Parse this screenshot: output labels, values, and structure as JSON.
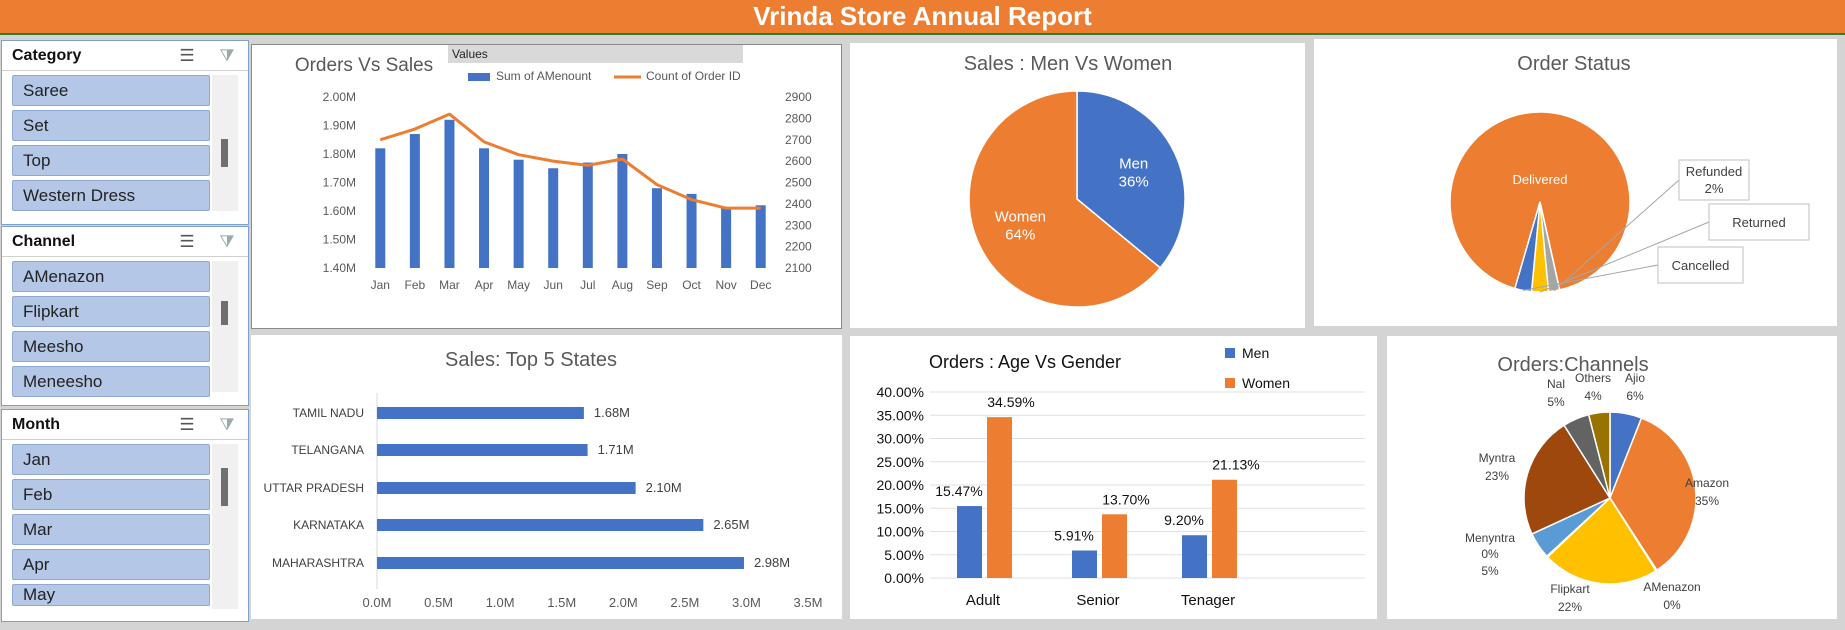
{
  "header": {
    "title": "Vrinda Store Annual Report"
  },
  "slicers": [
    {
      "title": "Category",
      "items": [
        "Saree",
        "Set",
        "Top",
        "Western Dress"
      ]
    },
    {
      "title": "Channel",
      "items": [
        "AMenazon",
        "Flipkart",
        "Meesho",
        "Meneesho"
      ]
    },
    {
      "title": "Month",
      "items": [
        "Jan",
        "Feb",
        "Mar",
        "Apr",
        "May"
      ]
    }
  ],
  "chart_data": [
    {
      "type": "bar",
      "title": "Orders Vs Sales",
      "legend_header": "Values",
      "legend_placement": "top",
      "categories": [
        "Jan",
        "Feb",
        "Mar",
        "Apr",
        "May",
        "Jun",
        "Jul",
        "Aug",
        "Sep",
        "Oct",
        "Nov",
        "Dec"
      ],
      "series": [
        {
          "name": "Sum of AMenount",
          "type": "bar",
          "axis": "left",
          "color": "#4472c4",
          "values": [
            1.82,
            1.87,
            1.92,
            1.82,
            1.78,
            1.75,
            1.77,
            1.8,
            1.68,
            1.66,
            1.61,
            1.62
          ]
        },
        {
          "name": "Count of Order ID",
          "type": "line",
          "axis": "right",
          "color": "#ed7d31",
          "values": [
            2700,
            2750,
            2820,
            2690,
            2630,
            2600,
            2580,
            2610,
            2490,
            2420,
            2380,
            2380
          ]
        }
      ],
      "y_left": {
        "ylim": [
          1.4,
          2.0
        ],
        "ticks": [
          "1.40M",
          "1.50M",
          "1.60M",
          "1.70M",
          "1.80M",
          "1.90M",
          "2.00M"
        ]
      },
      "y_right": {
        "ylim": [
          2100,
          2900
        ],
        "ticks": [
          "2100",
          "2200",
          "2300",
          "2400",
          "2500",
          "2600",
          "2700",
          "2800",
          "2900"
        ]
      },
      "grid": false
    },
    {
      "type": "pie",
      "title": "Sales : Men Vs Women",
      "slices": [
        {
          "label": "Men",
          "value": 36,
          "pct_label": "36%",
          "color": "#4472c4"
        },
        {
          "label": "Women",
          "value": 64,
          "pct_label": "64%",
          "color": "#ed7d31"
        }
      ]
    },
    {
      "type": "pie",
      "title": "Order Status",
      "slices": [
        {
          "label": "Delivered",
          "value": 92,
          "pct_label": "",
          "color": "#ed7d31"
        },
        {
          "label": "Refunded",
          "value": 2,
          "pct_label": "2%",
          "color": "#a5a5a5"
        },
        {
          "label": "Returned",
          "value": 3,
          "pct_label": "",
          "color": "#ffc000"
        },
        {
          "label": "Cancelled",
          "value": 3,
          "pct_label": "",
          "color": "#4472c4"
        }
      ]
    },
    {
      "type": "bar",
      "orientation": "horizontal",
      "title": "Sales: Top 5 States",
      "categories": [
        "TAMIL NADU",
        "TELANGANA",
        "UTTAR PRADESH",
        "KARNATAKA",
        "MAHARASHTRA"
      ],
      "values": [
        1.68,
        1.71,
        2.1,
        2.65,
        2.98
      ],
      "value_labels": [
        "1.68M",
        "1.71M",
        "2.10M",
        "2.65M",
        "2.98M"
      ],
      "xlim": [
        0,
        3.5
      ],
      "ticks": [
        "0.0M",
        "0.5M",
        "1.0M",
        "1.5M",
        "2.0M",
        "2.5M",
        "3.0M",
        "3.5M"
      ],
      "color": "#4472c4"
    },
    {
      "type": "bar",
      "title": "Orders : Age Vs Gender",
      "legend_placement": "top-right",
      "categories": [
        "Adult",
        "Senior",
        "Tenager"
      ],
      "series": [
        {
          "name": "Men",
          "color": "#4472c4",
          "values": [
            15.47,
            5.91,
            9.2
          ],
          "labels": [
            "15.47%",
            "5.91%",
            "9.20%"
          ]
        },
        {
          "name": "Women",
          "color": "#ed7d31",
          "values": [
            34.59,
            13.7,
            21.13
          ],
          "labels": [
            "34.59%",
            "13.70%",
            "21.13%"
          ]
        }
      ],
      "ylim": [
        0,
        40
      ],
      "ticks": [
        "0.00%",
        "5.00%",
        "10.00%",
        "15.00%",
        "20.00%",
        "25.00%",
        "30.00%",
        "35.00%",
        "40.00%"
      ],
      "grid": true
    },
    {
      "type": "pie",
      "title": "Orders:Channels",
      "slices": [
        {
          "label": "Ajio",
          "value": 6,
          "pct_label": "6%",
          "color": "#4472c4"
        },
        {
          "label": "Amazon",
          "value": 35,
          "pct_label": "35%",
          "color": "#ed7d31"
        },
        {
          "label": "AMenazon",
          "value": 0.2,
          "pct_label": "0%",
          "color": "#a5a5a5"
        },
        {
          "label": "Flipkart",
          "value": 22,
          "pct_label": "22%",
          "color": "#ffc000"
        },
        {
          "label": "Menyntra",
          "value": 0.2,
          "pct_label": "0%",
          "color": "#264478"
        },
        {
          "label": "",
          "value": 5,
          "pct_label": "5%",
          "color": "#5b9bd5"
        },
        {
          "label": "Myntra",
          "value": 23,
          "pct_label": "23%",
          "color": "#9e480e"
        },
        {
          "label": "Nal",
          "value": 5,
          "pct_label": "5%",
          "color": "#636363"
        },
        {
          "label": "Others",
          "value": 4,
          "pct_label": "4%",
          "color": "#997300"
        }
      ]
    }
  ]
}
